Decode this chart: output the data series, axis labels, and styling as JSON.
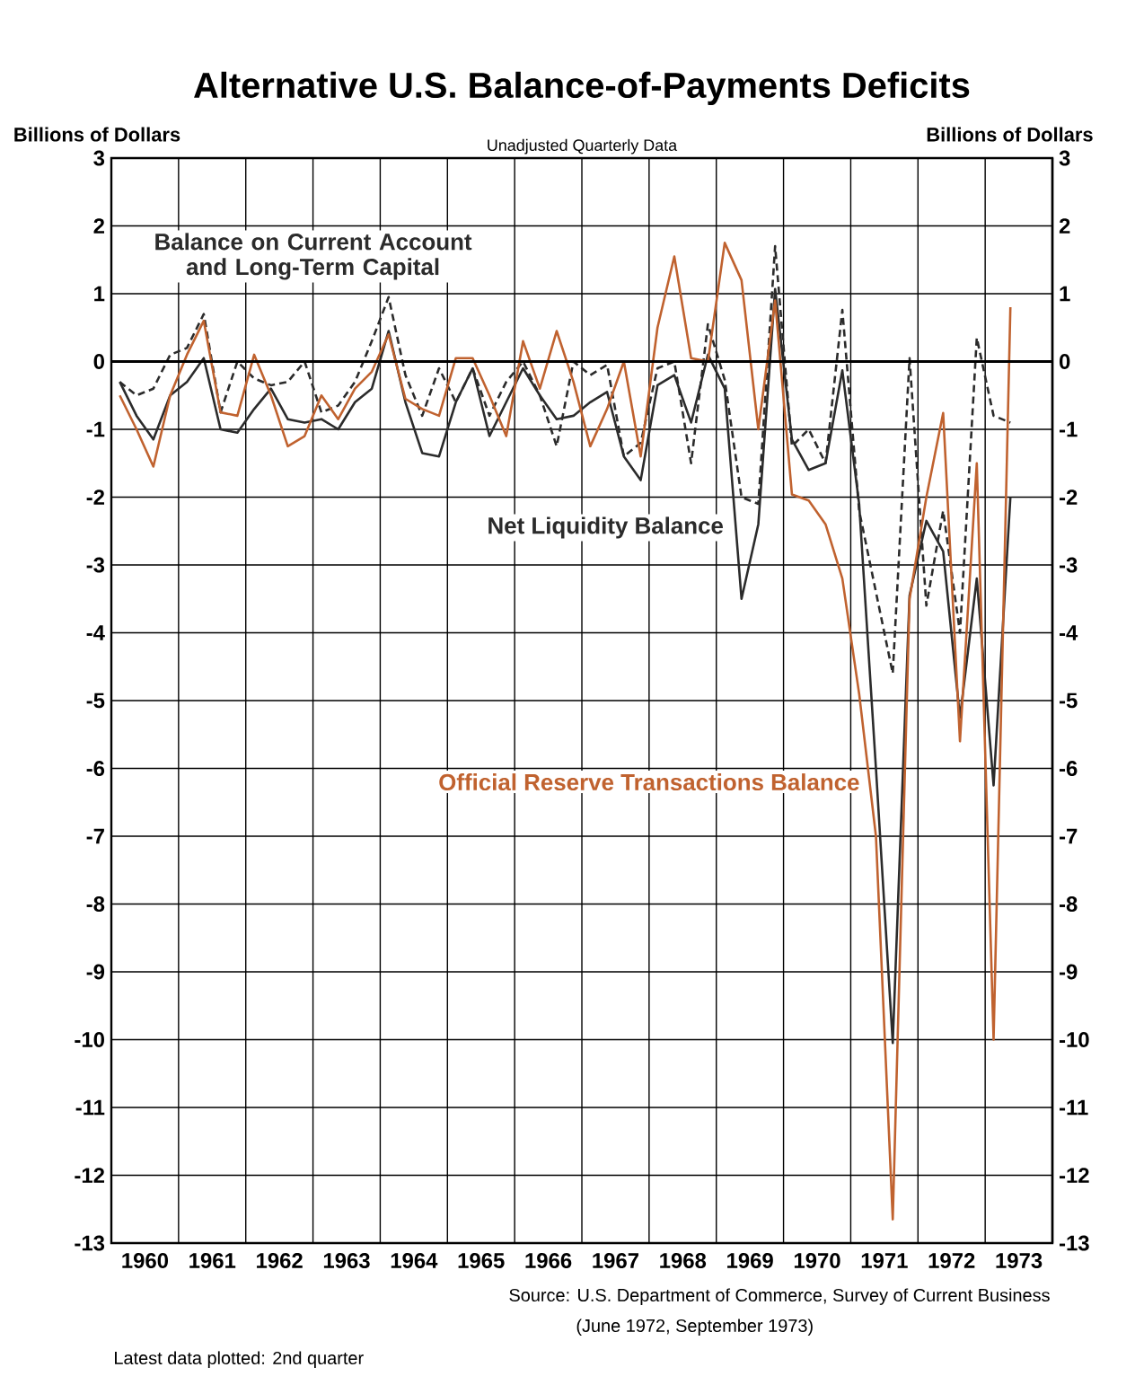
{
  "chart_data": {
    "type": "line",
    "title": "Alternative U.S. Balance-of-Payments Deficits",
    "subtitle": "Unadjusted Quarterly Data",
    "ylabel": "Billions of Dollars",
    "y2label": "Billions of Dollars",
    "annotations": [
      "Source: U.S. Department of Commerce, Survey of Current Business",
      "(June 1972, September 1973)",
      "Latest data plotted: 2nd quarter"
    ],
    "x": [
      1960.125,
      1960.375,
      1960.625,
      1960.875,
      1961.125,
      1961.375,
      1961.625,
      1961.875,
      1962.125,
      1962.375,
      1962.625,
      1962.875,
      1963.125,
      1963.375,
      1963.625,
      1963.875,
      1964.125,
      1964.375,
      1964.625,
      1964.875,
      1965.125,
      1965.375,
      1965.625,
      1965.875,
      1966.125,
      1966.375,
      1966.625,
      1966.875,
      1967.125,
      1967.375,
      1967.625,
      1967.875,
      1968.125,
      1968.375,
      1968.625,
      1968.875,
      1969.125,
      1969.375,
      1969.625,
      1969.875,
      1970.125,
      1970.375,
      1970.625,
      1970.875,
      1971.125,
      1971.375,
      1971.625,
      1971.875,
      1972.125,
      1972.375,
      1972.625,
      1972.875,
      1973.125,
      1973.375
    ],
    "series": [
      {
        "name": "Balance on Current Account and Long-Term Capital",
        "color": "#2b2b2b",
        "line_style": "dashed",
        "values": [
          -0.3,
          -0.5,
          -0.4,
          0.1,
          0.2,
          0.7,
          -0.75,
          0.0,
          -0.25,
          -0.35,
          -0.3,
          0.0,
          -0.75,
          -0.65,
          -0.3,
          0.3,
          0.95,
          -0.2,
          -0.8,
          -0.1,
          -0.6,
          -0.1,
          -0.8,
          -0.3,
          0.0,
          -0.5,
          -1.25,
          0.0,
          -0.2,
          -0.05,
          -1.4,
          -1.2,
          -0.1,
          0.0,
          -1.5,
          0.55,
          -0.27,
          -2.0,
          -2.1,
          1.7,
          -1.25,
          -1.0,
          -1.5,
          0.76,
          -2.2,
          -3.4,
          -4.6,
          0.05,
          -3.6,
          -2.2,
          -4.0,
          0.35,
          -0.8,
          -0.9
        ]
      },
      {
        "name": "Net Liquidity Balance",
        "color": "#2b2b2b",
        "line_style": "solid",
        "values": [
          -0.3,
          -0.8,
          -1.15,
          -0.5,
          -0.3,
          0.05,
          -1.0,
          -1.05,
          -0.7,
          -0.4,
          -0.85,
          -0.9,
          -0.85,
          -1.0,
          -0.6,
          -0.4,
          0.45,
          -0.6,
          -1.35,
          -1.4,
          -0.6,
          -0.1,
          -1.1,
          -0.6,
          -0.1,
          -0.5,
          -0.85,
          -0.8,
          -0.6,
          -0.45,
          -1.4,
          -1.75,
          -0.35,
          -0.2,
          -0.9,
          0.1,
          -0.4,
          -3.5,
          -2.4,
          1.07,
          -1.15,
          -1.6,
          -1.5,
          -0.13,
          -2.1,
          -6.0,
          -10.05,
          -3.45,
          -2.35,
          -2.8,
          -5.25,
          -3.2,
          -6.25,
          -2.0
        ]
      },
      {
        "name": "Official Reserve Transactions Balance",
        "color": "#c0622f",
        "line_style": "solid",
        "values": [
          -0.5,
          -1.0,
          -1.55,
          -0.5,
          0.1,
          0.6,
          -0.75,
          -0.8,
          0.1,
          -0.5,
          -1.25,
          -1.1,
          -0.5,
          -0.85,
          -0.4,
          -0.15,
          0.4,
          -0.55,
          -0.7,
          -0.8,
          0.05,
          0.05,
          -0.5,
          -1.1,
          0.3,
          -0.4,
          0.45,
          -0.3,
          -1.25,
          -0.7,
          0.0,
          -1.4,
          0.5,
          1.55,
          0.05,
          0.0,
          1.75,
          1.2,
          -1.0,
          0.9,
          -1.96,
          -2.05,
          -2.4,
          -3.2,
          -4.9,
          -7.0,
          -12.65,
          -3.5,
          -2.0,
          -0.76,
          -5.6,
          -1.5,
          -10.0,
          0.8
        ]
      }
    ],
    "xlim": [
      1960,
      1974
    ],
    "xticks": [
      {
        "value": 1960,
        "label": null
      },
      {
        "value": 1961,
        "label": null
      },
      {
        "value": 1962,
        "label": null
      },
      {
        "value": 1963,
        "label": null
      },
      {
        "value": 1964,
        "label": null
      },
      {
        "value": 1965,
        "label": null
      },
      {
        "value": 1966,
        "label": null
      },
      {
        "value": 1967,
        "label": null
      },
      {
        "value": 1968,
        "label": null
      },
      {
        "value": 1969,
        "label": null
      },
      {
        "value": 1970,
        "label": null
      },
      {
        "value": 1971,
        "label": null
      },
      {
        "value": 1972,
        "label": null
      },
      {
        "value": 1973,
        "label": null
      },
      {
        "value": 1974,
        "label": null
      },
      {
        "value": 1960.5,
        "label": "1960"
      },
      {
        "value": 1961.5,
        "label": "1961"
      },
      {
        "value": 1962.5,
        "label": "1962"
      },
      {
        "value": 1963.5,
        "label": "1963"
      },
      {
        "value": 1964.5,
        "label": "1964"
      },
      {
        "value": 1965.5,
        "label": "1965"
      },
      {
        "value": 1966.5,
        "label": "1966"
      },
      {
        "value": 1967.5,
        "label": "1967"
      },
      {
        "value": 1968.5,
        "label": "1968"
      },
      {
        "value": 1969.5,
        "label": "1969"
      },
      {
        "value": 1970.5,
        "label": "1970"
      },
      {
        "value": 1971.5,
        "label": "1971"
      },
      {
        "value": 1972.5,
        "label": "1972"
      },
      {
        "value": 1973.5,
        "label": "1973"
      }
    ],
    "ylim": [
      -13,
      3
    ],
    "yticks": [
      -13,
      -12,
      -11,
      -10,
      -9,
      -8,
      -7,
      -6,
      -5,
      -4,
      -3,
      -2,
      -1,
      0,
      1,
      2,
      3
    ],
    "y2lim": [
      -13,
      3
    ],
    "y2ticks": [
      -13,
      -12,
      -11,
      -10,
      -9,
      -8,
      -7,
      -6,
      -5,
      -4,
      -3,
      -2,
      -1,
      0,
      1,
      2,
      3
    ],
    "ref_lines": [
      {
        "axis": "y",
        "value": 0
      }
    ],
    "grid": true
  }
}
